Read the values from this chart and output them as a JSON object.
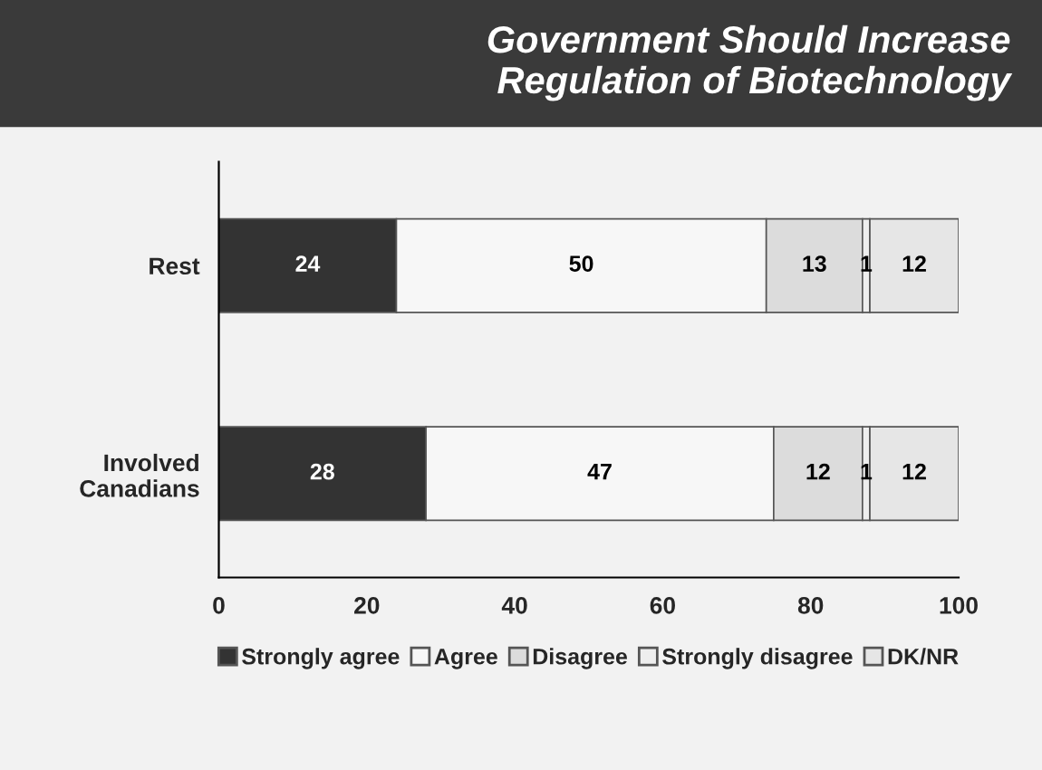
{
  "chart_data": {
    "type": "bar",
    "orientation": "horizontal",
    "stacked": true,
    "title": "Government Should Increase\nRegulation of Biotechnology",
    "categories": [
      "Rest",
      "Involved\nCanadians"
    ],
    "series": [
      {
        "name": "Strongly agree",
        "color": "#333333",
        "values": [
          24,
          28
        ]
      },
      {
        "name": "Agree",
        "color": "#f7f7f7",
        "values": [
          50,
          47
        ]
      },
      {
        "name": "Disagree",
        "color": "#dcdcdc",
        "values": [
          13,
          12
        ]
      },
      {
        "name": "Strongly disagree",
        "color": "#eeeeee",
        "values": [
          1,
          1
        ]
      },
      {
        "name": "DK/NR",
        "color": "#e6e6e6",
        "values": [
          12,
          12
        ]
      }
    ],
    "xlim": [
      0,
      100
    ],
    "xticks": [
      0,
      20,
      40,
      60,
      80,
      100
    ],
    "data_labels": true,
    "grid": false,
    "legend": "bottom"
  }
}
